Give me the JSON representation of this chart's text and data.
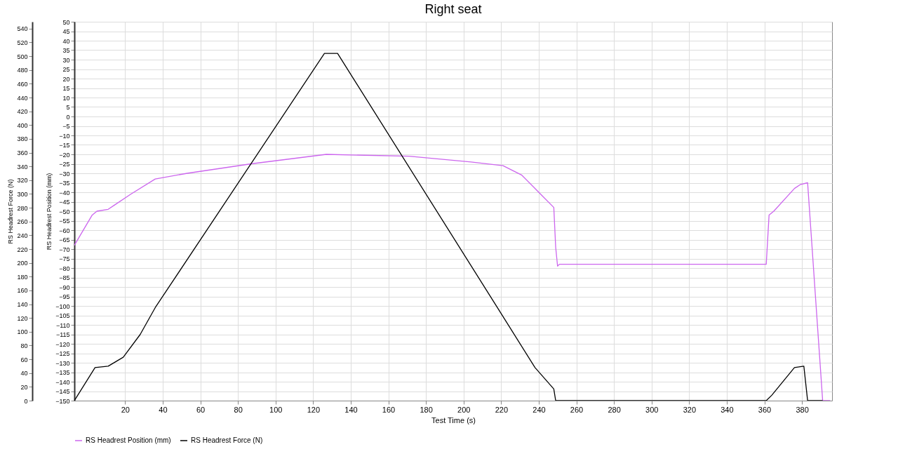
{
  "chart_data": {
    "type": "line",
    "title": "Right seat",
    "xlabel": "Test Time (s)",
    "ylabel": "RS Headrest Force (N)",
    "y2label": "RS Headrest Position (mm)",
    "xlim": [
      -7,
      396
    ],
    "xticks": [
      20,
      40,
      60,
      80,
      100,
      120,
      140,
      160,
      180,
      200,
      220,
      240,
      260,
      280,
      300,
      320,
      340,
      360,
      380
    ],
    "ylim": [
      0,
      550
    ],
    "yticks": [
      0,
      20,
      40,
      60,
      80,
      100,
      120,
      140,
      160,
      180,
      200,
      220,
      240,
      260,
      280,
      300,
      320,
      340,
      360,
      380,
      400,
      420,
      440,
      460,
      480,
      500,
      520,
      540
    ],
    "y2lim": [
      -150,
      50
    ],
    "y2ticks": [
      -150,
      -145,
      -140,
      -135,
      -130,
      -125,
      -120,
      -115,
      -110,
      -105,
      -100,
      -95,
      -90,
      -85,
      -80,
      -75,
      -70,
      -65,
      -60,
      -55,
      -50,
      -45,
      -40,
      -35,
      -30,
      -25,
      -20,
      -15,
      -10,
      -5,
      0,
      5,
      10,
      15,
      20,
      25,
      30,
      35,
      40,
      45,
      50
    ],
    "grid": true,
    "legend": "bottom",
    "series": [
      {
        "name": "RS Headrest Position (mm)",
        "color": "#cc66ee",
        "axis": "y2",
        "x": [
          -7,
          2.5,
          5,
          11,
          14,
          23,
          36,
          53,
          87,
          127,
          171,
          204,
          221,
          231,
          241,
          248,
          249,
          250,
          251,
          361,
          362.5,
          365,
          376,
          379,
          383,
          391,
          395
        ],
        "values": [
          -68,
          -52,
          -50,
          -49,
          -47,
          -41,
          -33,
          -30,
          -25,
          -20,
          -21,
          -24,
          -26,
          -31,
          -41,
          -48,
          -69,
          -79,
          -78,
          -78,
          -52,
          -50,
          -38,
          -36,
          -35,
          -150,
          -150
        ]
      },
      {
        "name": "RS Headrest Force (N)",
        "color": "#000000",
        "x": [
          -7,
          4,
          11,
          19,
          28,
          36,
          126,
          133,
          218,
          238,
          248,
          249,
          361,
          364,
          376,
          381,
          383,
          391
        ],
        "values": [
          0,
          48,
          50,
          63,
          96,
          135,
          504,
          504,
          135,
          48,
          17,
          0,
          0,
          8,
          48,
          50,
          0,
          0
        ]
      }
    ]
  }
}
